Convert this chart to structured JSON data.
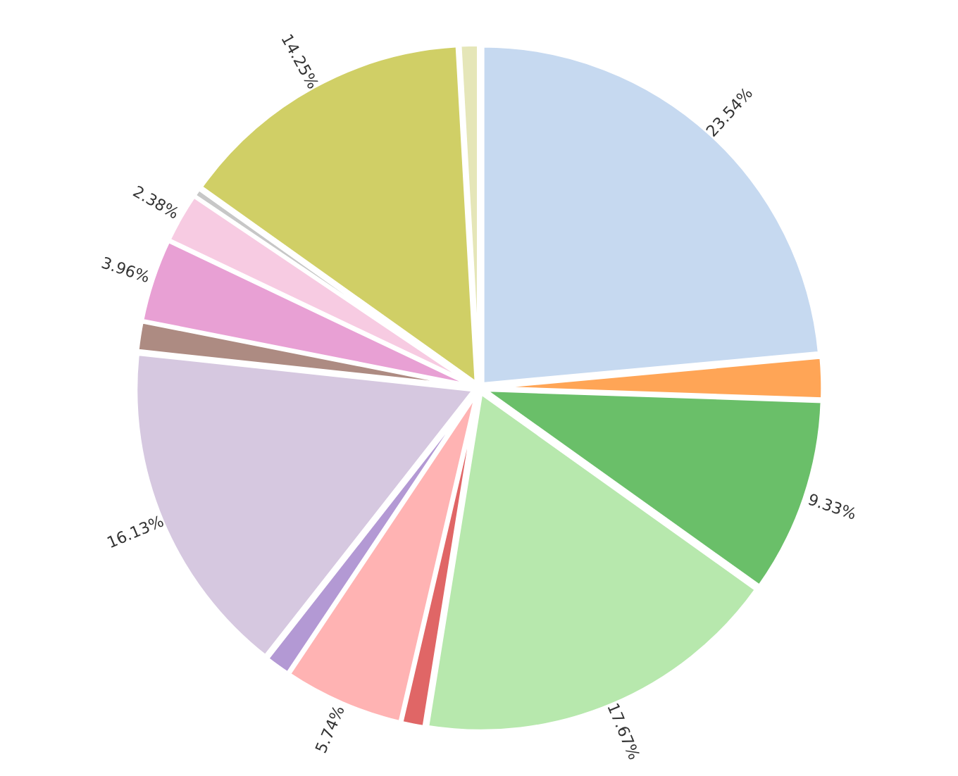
{
  "chart_data": {
    "type": "pie",
    "categories": [
      null,
      null,
      null,
      null,
      null,
      null,
      null,
      null,
      null,
      null,
      null,
      null,
      null,
      null
    ],
    "values": [
      23.54,
      2.0,
      9.33,
      17.67,
      1.1,
      5.74,
      1.2,
      16.13,
      1.4,
      3.96,
      2.38,
      0.4,
      14.25,
      0.9
    ],
    "value_labels": [
      "23.54%",
      null,
      "9.33%",
      "17.67%",
      null,
      "5.74%",
      null,
      "16.13%",
      null,
      "3.96%",
      "2.38%",
      null,
      "14.25%",
      null
    ],
    "colors": [
      "#c6d9f0",
      "#ffa556",
      "#6abf69",
      "#b7e8ad",
      "#e06666",
      "#ffb3b3",
      "#b399d4",
      "#d6c8e0",
      "#ad8b82",
      "#e8a0d4",
      "#f7cbe2",
      "#c7c7c7",
      "#d0cf66",
      "#e5e6b8"
    ]
  }
}
